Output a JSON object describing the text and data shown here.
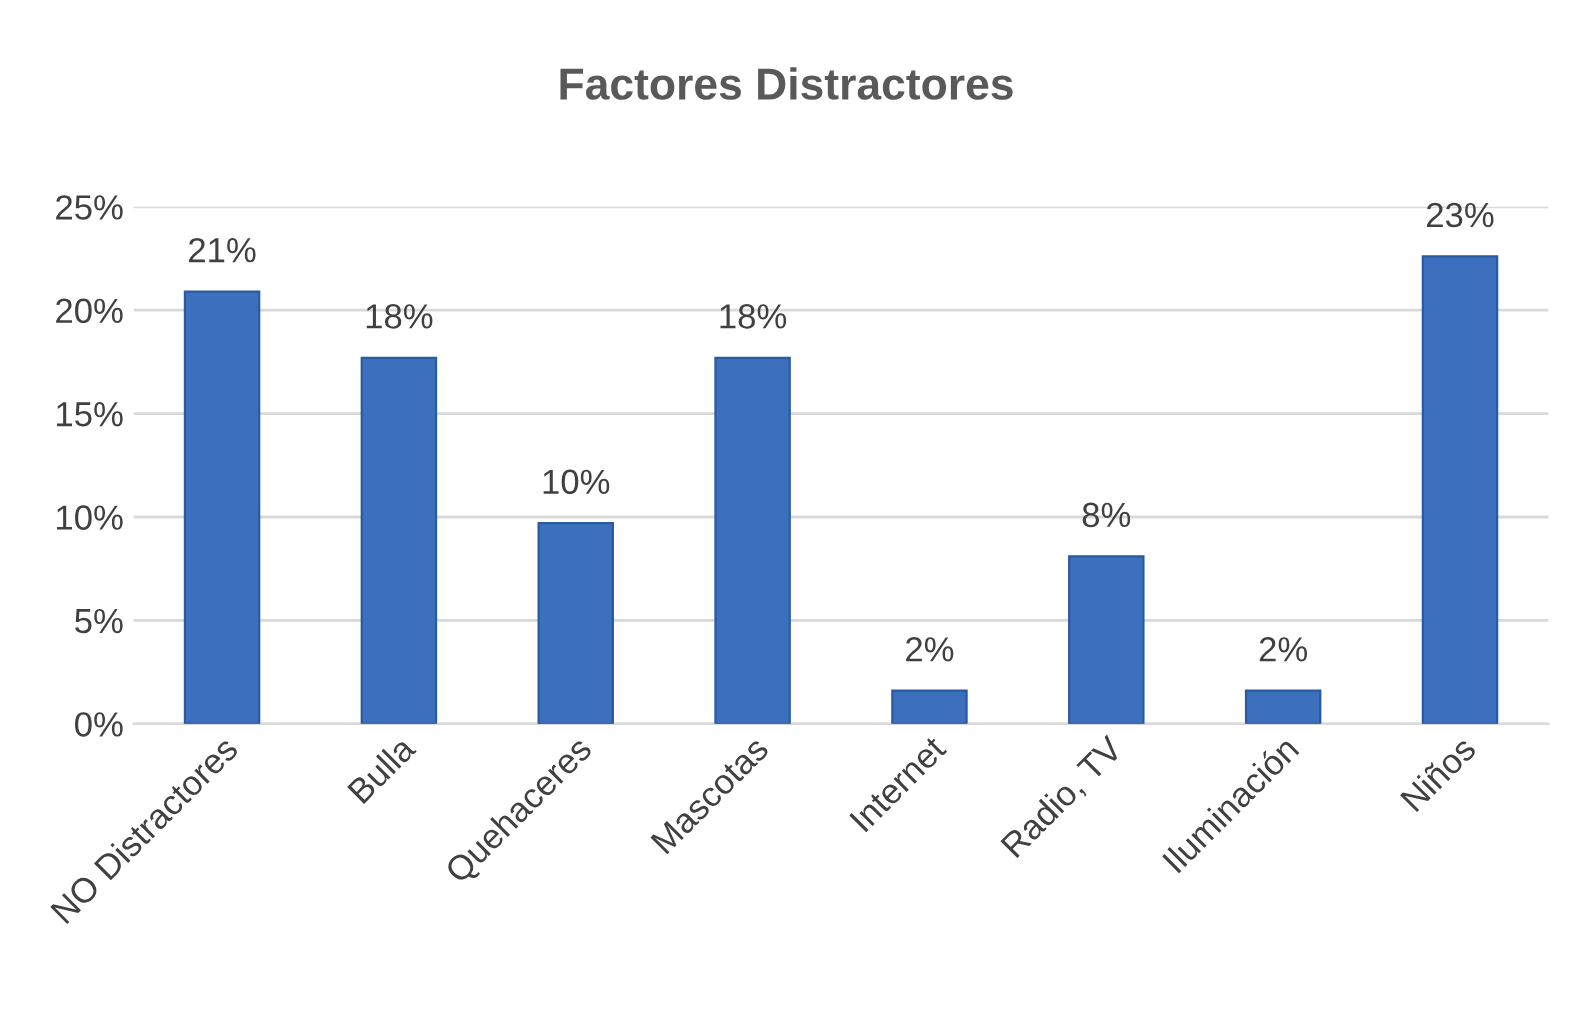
{
  "chart_data": {
    "type": "bar",
    "title": "Factores Distractores",
    "categories": [
      "NO Distractores",
      "Bulla",
      "Quehaceres",
      "Mascotas",
      "Internet",
      "Radio, TV",
      "Iluminación",
      "Niños"
    ],
    "values": [
      20.9,
      17.7,
      9.7,
      17.7,
      1.6,
      8.1,
      1.6,
      22.6
    ],
    "value_labels": [
      "21%",
      "18%",
      "10%",
      "18%",
      "2%",
      "8%",
      "2%",
      "23%"
    ],
    "color": "#3d6fbf",
    "ylim": [
      0,
      25
    ],
    "yticks": [
      {
        "value": 0,
        "label": "0%"
      },
      {
        "value": 5,
        "label": "5%"
      },
      {
        "value": 10,
        "label": "10%"
      },
      {
        "value": 15,
        "label": "15%"
      },
      {
        "value": 20,
        "label": "20%"
      },
      {
        "value": 25,
        "label": "25%"
      }
    ],
    "grid": "y"
  }
}
